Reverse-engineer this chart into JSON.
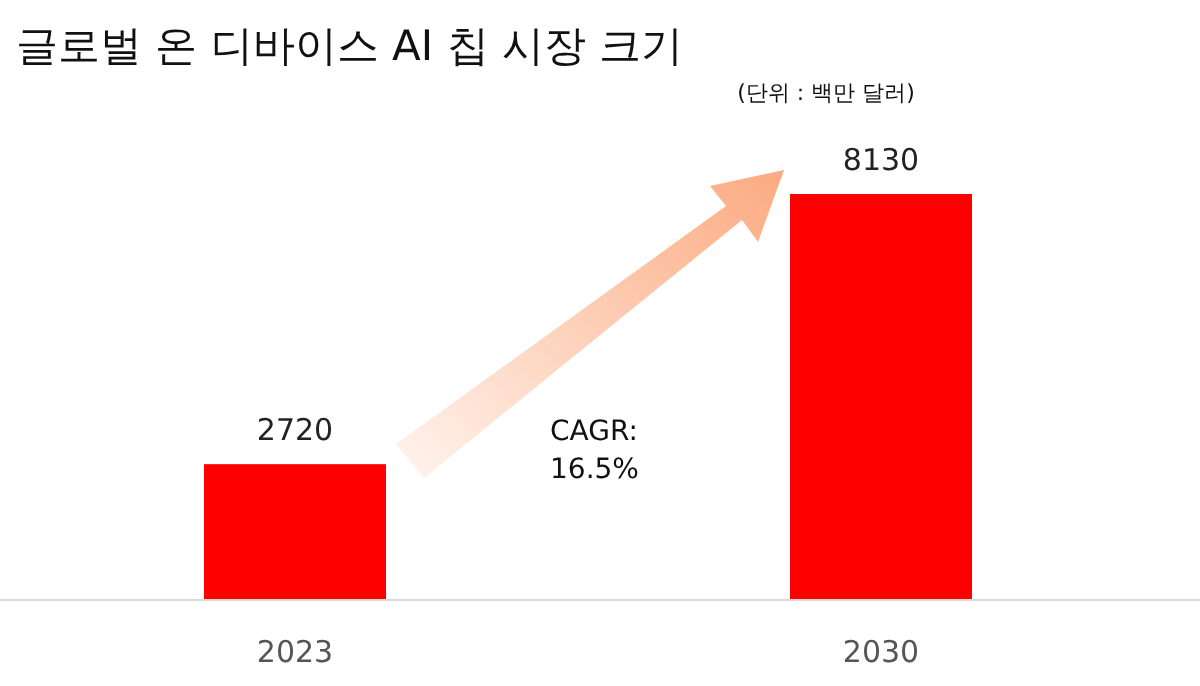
{
  "chart_data": {
    "type": "bar",
    "title": "글로벌 온 디바이스 AI 칩 시장 크기",
    "categories": [
      "2023",
      "2030"
    ],
    "values": [
      2720,
      8130
    ],
    "colors": [
      "#ff0000",
      "#ff0000"
    ],
    "data_labels": true,
    "annotations": [
      "(단위 : 백만 달러)",
      "CAGR: 16.5%"
    ]
  }
}
